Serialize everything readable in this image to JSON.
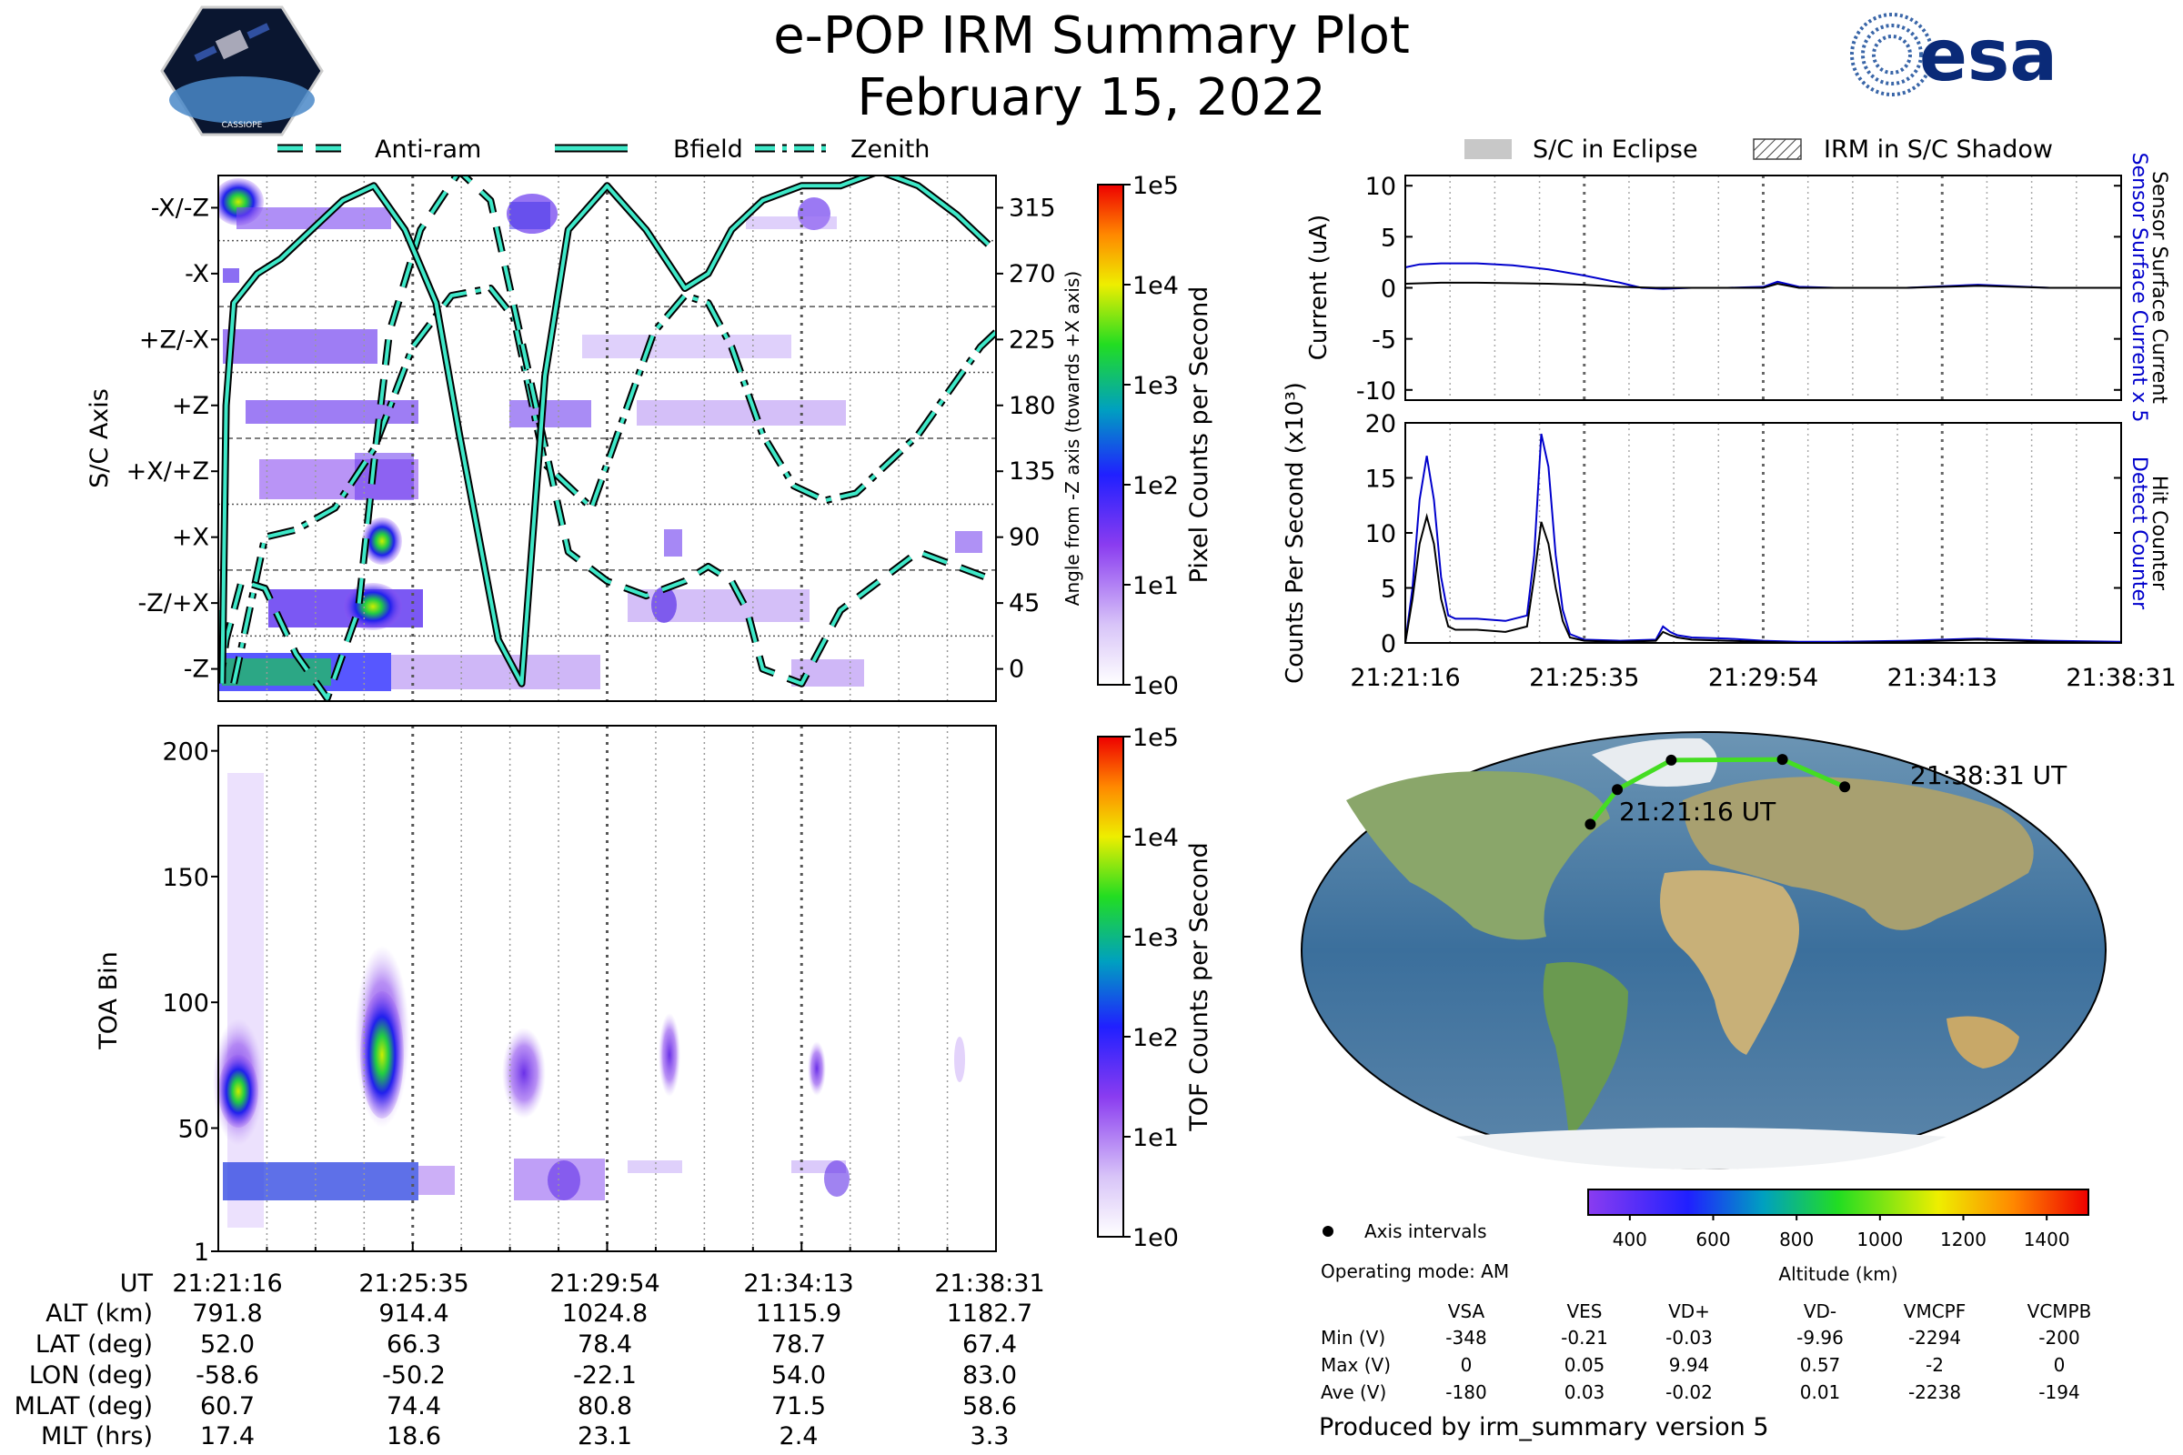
{
  "header": {
    "title": "e-POP IRM Summary Plot",
    "date": "February 15, 2022",
    "mission_logo_text": "CASSIOPE",
    "agency_logo_text": "esa"
  },
  "colors": {
    "line_teal": "#3ee8c8",
    "sensor_blue": "#0000cc",
    "counter_black": "#000000",
    "track_green": "#44dd22"
  },
  "legend_top": {
    "items": [
      {
        "label": "Anti-ram",
        "style": "dashed"
      },
      {
        "label": "Bfield",
        "style": "solid"
      },
      {
        "label": "Zenith",
        "style": "dashdot"
      }
    ]
  },
  "legend_right": {
    "items": [
      {
        "label": "S/C in Eclipse",
        "style": "filled-gray"
      },
      {
        "label": "IRM in S/C Shadow",
        "style": "hatched"
      }
    ]
  },
  "time_ticks": [
    "21:21:16",
    "21:25:35",
    "21:29:54",
    "21:34:13",
    "21:38:31"
  ],
  "chart_data": [
    {
      "type": "heatmap",
      "name": "pixel-counts",
      "ylabel": "S/C Axis",
      "ylabel_right": "Angle from -Z axis (towards +X axis)",
      "y_categories": [
        "-X/-Z",
        "-X",
        "+Z/-X",
        "+Z",
        "+X/+Z",
        "+X",
        "-Z/+X",
        "-Z"
      ],
      "y_right_ticks": [
        315,
        270,
        225,
        180,
        135,
        90,
        45,
        0
      ],
      "ylim": [
        -22,
        337
      ],
      "colorbar": {
        "label": "Pixel Counts per Second",
        "ticks": [
          "1e5",
          "1e4",
          "1e3",
          "1e2",
          "1e1",
          "1e0"
        ]
      },
      "lines": {
        "antiram": {
          "x": [
            0,
            0.005,
            0.01,
            0.03,
            0.06,
            0.1,
            0.14,
            0.18,
            0.2,
            0.22,
            0.26,
            0.31,
            0.35,
            0.4,
            0.45,
            0.5,
            0.55,
            0.6,
            0.63,
            0.66,
            0.68,
            0.7,
            0.75,
            0.8,
            0.85,
            0.9,
            0.95,
            1.0
          ],
          "y": [
            40,
            0,
            20,
            60,
            55,
            10,
            -20,
            40,
            140,
            230,
            300,
            340,
            320,
            200,
            80,
            60,
            50,
            60,
            70,
            60,
            40,
            0,
            -10,
            40,
            60,
            80,
            70,
            60
          ]
        },
        "bfield": {
          "x": [
            0.005,
            0.01,
            0.02,
            0.05,
            0.08,
            0.12,
            0.16,
            0.2,
            0.24,
            0.28,
            0.31,
            0.36,
            0.39,
            0.4,
            0.42,
            0.45,
            0.5,
            0.55,
            0.6,
            0.63,
            0.66,
            0.7,
            0.75,
            0.8,
            0.85,
            0.9,
            0.95,
            0.99
          ],
          "y": [
            -10,
            180,
            250,
            270,
            280,
            300,
            320,
            330,
            300,
            250,
            160,
            20,
            -10,
            60,
            200,
            300,
            330,
            300,
            260,
            270,
            300,
            320,
            330,
            330,
            340,
            330,
            310,
            290
          ]
        },
        "zenith": {
          "x": [
            0.02,
            0.04,
            0.06,
            0.1,
            0.15,
            0.2,
            0.25,
            0.3,
            0.35,
            0.38,
            0.42,
            0.48,
            0.52,
            0.56,
            0.6,
            0.63,
            0.66,
            0.7,
            0.74,
            0.78,
            0.82,
            0.86,
            0.9,
            0.94,
            0.98,
            1.0
          ],
          "y": [
            -10,
            40,
            90,
            95,
            110,
            150,
            220,
            255,
            260,
            240,
            140,
            110,
            170,
            230,
            255,
            250,
            220,
            160,
            125,
            115,
            120,
            140,
            160,
            190,
            220,
            230
          ]
        }
      }
    },
    {
      "type": "heatmap",
      "name": "tof-counts",
      "ylabel": "TOA Bin",
      "y_ticks": [
        1,
        50,
        100,
        150,
        200
      ],
      "ylim": [
        1,
        210
      ],
      "colorbar": {
        "label": "TOF Counts per Second",
        "ticks": [
          "1e5",
          "1e4",
          "1e3",
          "1e2",
          "1e1",
          "1e0"
        ]
      }
    },
    {
      "type": "line",
      "name": "current",
      "ylabel": "Current (uA)",
      "ylabel_right_1": "Sensor Surface Current x 5",
      "ylabel_right_2": "Sensor Surface Current",
      "y_ticks": [
        10,
        5,
        0,
        -5,
        -10
      ],
      "ylim": [
        -11,
        11
      ],
      "series": [
        {
          "name": "Sensor Surface Current x 5",
          "color": "#0000cc",
          "x": [
            0,
            0.02,
            0.05,
            0.1,
            0.15,
            0.2,
            0.25,
            0.3,
            0.33,
            0.36,
            0.4,
            0.45,
            0.5,
            0.52,
            0.55,
            0.6,
            0.7,
            0.8,
            0.9,
            1.0
          ],
          "y": [
            2.0,
            2.3,
            2.4,
            2.4,
            2.2,
            1.8,
            1.2,
            0.5,
            0.0,
            -0.1,
            0.0,
            0.0,
            0.1,
            0.6,
            0.1,
            0.0,
            0.0,
            0.3,
            0.0,
            0.0
          ]
        },
        {
          "name": "Sensor Surface Current",
          "color": "#000000",
          "x": [
            0,
            0.05,
            0.1,
            0.15,
            0.2,
            0.25,
            0.3,
            0.35,
            0.4,
            0.45,
            0.5,
            0.52,
            0.55,
            0.6,
            0.7,
            0.8,
            0.9,
            1.0
          ],
          "y": [
            0.4,
            0.5,
            0.5,
            0.45,
            0.4,
            0.3,
            0.1,
            0.0,
            0.0,
            0.0,
            0.0,
            0.4,
            0.0,
            0.0,
            0.0,
            0.2,
            0.0,
            0.0
          ]
        }
      ]
    },
    {
      "type": "line",
      "name": "counts",
      "ylabel": "Counts Per Second (x10³)",
      "ylabel_right_1": "Detect Counter",
      "ylabel_right_2": "Hit Counter",
      "y_ticks": [
        0,
        5,
        10,
        15,
        20
      ],
      "ylim": [
        0,
        20
      ],
      "series": [
        {
          "name": "Detect Counter",
          "color": "#0000cc",
          "x": [
            0,
            0.01,
            0.02,
            0.03,
            0.04,
            0.05,
            0.06,
            0.07,
            0.08,
            0.1,
            0.14,
            0.17,
            0.18,
            0.19,
            0.2,
            0.21,
            0.22,
            0.23,
            0.25,
            0.3,
            0.35,
            0.36,
            0.37,
            0.38,
            0.4,
            0.45,
            0.5,
            0.55,
            0.6,
            0.7,
            0.8,
            0.9,
            1.0
          ],
          "y": [
            0,
            5,
            13,
            17,
            13,
            6,
            2.5,
            2.2,
            2.2,
            2.2,
            2.0,
            2.5,
            8,
            19,
            16,
            8,
            3,
            0.8,
            0.3,
            0.2,
            0.3,
            1.5,
            1.0,
            0.7,
            0.5,
            0.4,
            0.2,
            0.1,
            0.1,
            0.2,
            0.4,
            0.2,
            0.1
          ]
        },
        {
          "name": "Hit Counter",
          "color": "#000000",
          "x": [
            0,
            0.01,
            0.02,
            0.03,
            0.04,
            0.05,
            0.06,
            0.07,
            0.08,
            0.1,
            0.14,
            0.17,
            0.18,
            0.19,
            0.2,
            0.21,
            0.22,
            0.23,
            0.25,
            0.3,
            0.35,
            0.36,
            0.37,
            0.38,
            0.4,
            0.45,
            0.5,
            0.55,
            0.6,
            0.7,
            0.8,
            0.9,
            1.0
          ],
          "y": [
            0,
            4,
            9,
            11.5,
            9,
            4,
            1.5,
            1.2,
            1.2,
            1.2,
            1.0,
            1.5,
            6,
            11,
            9,
            5,
            2,
            0.5,
            0.2,
            0.1,
            0.2,
            1.0,
            0.7,
            0.5,
            0.3,
            0.2,
            0.1,
            0.0,
            0.0,
            0.1,
            0.3,
            0.1,
            0.0
          ]
        }
      ]
    },
    {
      "type": "map",
      "name": "ground-track",
      "start_label": "21:21:16 UT",
      "end_label": "21:38:31 UT",
      "track": [
        [
          -58.6,
          52.0
        ],
        [
          -50.2,
          66.3
        ],
        [
          -22.1,
          78.4
        ],
        [
          54.0,
          78.7
        ],
        [
          83.0,
          67.4
        ]
      ],
      "colorbar": {
        "label": "Altitude (km)",
        "ticks": [
          400,
          600,
          800,
          1000,
          1200,
          1400
        ],
        "range": [
          300,
          1500
        ]
      }
    }
  ],
  "orbit_table": {
    "labels": [
      "UT",
      "ALT (km)",
      "LAT (deg)",
      "LON (deg)",
      "MLAT (deg)",
      "MLT (hrs)"
    ],
    "columns": [
      [
        "21:21:16",
        "791.8",
        "52.0",
        "-58.6",
        "60.7",
        "17.4"
      ],
      [
        "21:25:35",
        "914.4",
        "66.3",
        "-50.2",
        "74.4",
        "18.6"
      ],
      [
        "21:29:54",
        "1024.8",
        "78.4",
        "-22.1",
        "80.8",
        "23.1"
      ],
      [
        "21:34:13",
        "1115.9",
        "78.7",
        "54.0",
        "71.5",
        "2.4"
      ],
      [
        "21:38:31",
        "1182.7",
        "67.4",
        "83.0",
        "58.6",
        "3.3"
      ]
    ]
  },
  "info": {
    "axis_intervals": "Axis intervals",
    "operating_mode": "Operating mode: AM",
    "produced_by": "Produced by irm_summary version 5"
  },
  "voltage_table": {
    "headers": [
      "VSA",
      "VES",
      "VD+",
      "VD-",
      "VMCPF",
      "VCMPB"
    ],
    "rows": [
      {
        "label": "Min (V)",
        "values": [
          "-348",
          "-0.21",
          "-0.03",
          "-9.96",
          "-2294",
          "-200"
        ]
      },
      {
        "label": "Max (V)",
        "values": [
          "0",
          "0.05",
          "9.94",
          "0.57",
          "-2",
          "0"
        ]
      },
      {
        "label": "Ave (V)",
        "values": [
          "-180",
          "0.03",
          "-0.02",
          "0.01",
          "-2238",
          "-194"
        ]
      }
    ]
  }
}
